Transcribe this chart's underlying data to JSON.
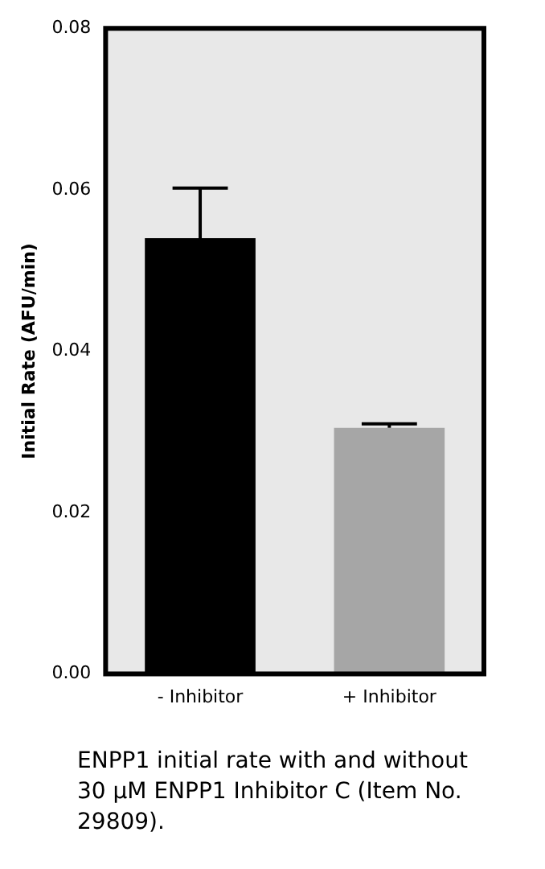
{
  "chart_data": {
    "type": "bar",
    "ylabel": "Initial Rate (AFU/min)",
    "categories": [
      "- Inhibitor",
      "+ Inhibitor"
    ],
    "values": [
      0.054,
      0.0305
    ],
    "colors": [
      "#000000",
      "#a6a6a6"
    ],
    "errors": [
      [
        0.054,
        0.0602
      ],
      [
        0.0305,
        0.031
      ]
    ],
    "ylim": [
      0,
      0.08
    ],
    "yticks": [
      {
        "value": 0,
        "label": "0.00"
      },
      {
        "value": 0.02,
        "label": "0.02"
      },
      {
        "value": 0.04,
        "label": "0.04"
      },
      {
        "value": 0.06,
        "label": "0.06"
      },
      {
        "value": 0.08,
        "label": "0.08"
      }
    ],
    "annotations": [
      "ENPP1 initial rate with and without 30 µM ENPP1 Inhibitor C (Item No. 29809)."
    ]
  }
}
